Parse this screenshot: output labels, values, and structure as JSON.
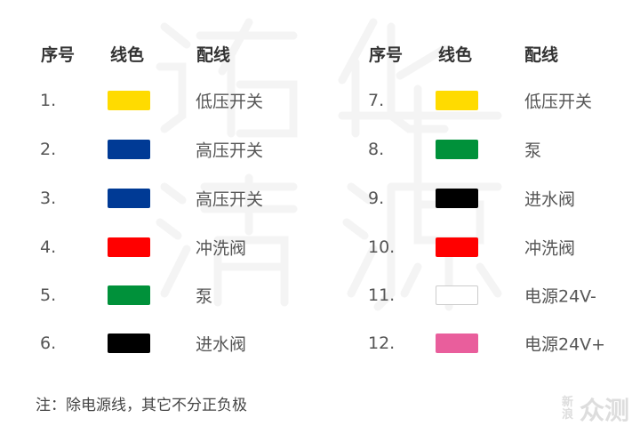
{
  "watermark": [
    "诺",
    "华",
    "清",
    "源"
  ],
  "headers": {
    "num": "序号",
    "color": "线色",
    "wiring": "配线"
  },
  "left_rows": [
    {
      "num": "1.",
      "color": "#FFDB00",
      "label": "低压开关"
    },
    {
      "num": "2.",
      "color": "#003A95",
      "label": "高压开关"
    },
    {
      "num": "3.",
      "color": "#003A95",
      "label": "高压开关"
    },
    {
      "num": "4.",
      "color": "#FF0000",
      "label": "冲洗阀"
    },
    {
      "num": "5.",
      "color": "#00913A",
      "label": "泵"
    },
    {
      "num": "6.",
      "color": "#000000",
      "label": "进水阀"
    }
  ],
  "right_rows": [
    {
      "num": "7.",
      "color": "#FFDB00",
      "label": "低压开关"
    },
    {
      "num": "8.",
      "color": "#00913A",
      "label": "泵"
    },
    {
      "num": "9.",
      "color": "#000000",
      "label": "进水阀"
    },
    {
      "num": "10.",
      "color": "#FF0000",
      "label": "冲洗阀"
    },
    {
      "num": "11.",
      "color": "#FFFFFF",
      "label": "电源24V-"
    },
    {
      "num": "12.",
      "color": "#E95E9C",
      "label": "电源24V+"
    }
  ],
  "note": "注：除电源线，其它不分正负极",
  "logo": {
    "small": "新浪",
    "big": "众测"
  }
}
